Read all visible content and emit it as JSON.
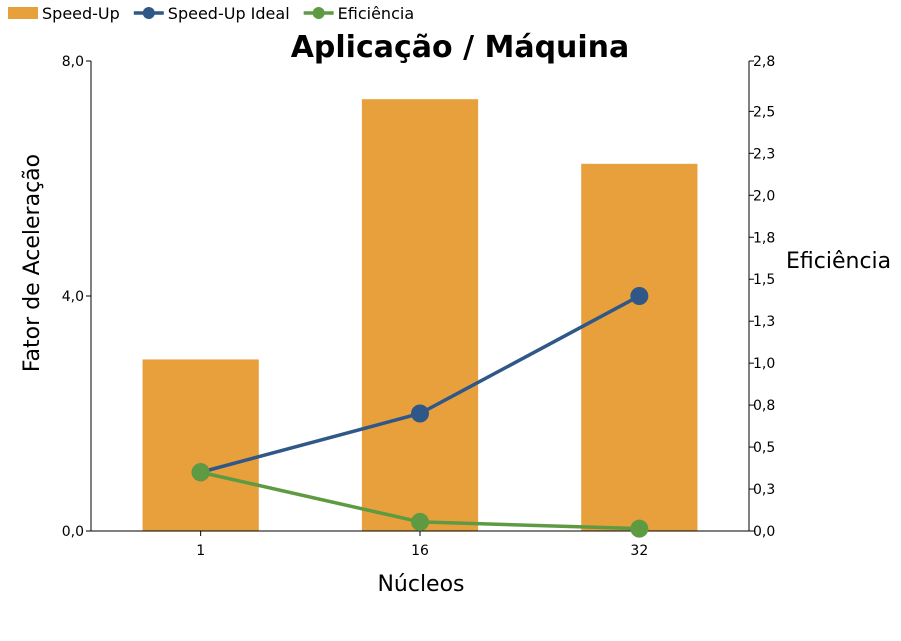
{
  "chart_data": {
    "type": "bar",
    "title": "Aplicação / Máquina",
    "xlabel": "Núcleos",
    "ylabel": "Fator de Aceleração",
    "y2label": "Eficiência",
    "categories": [
      "1",
      "16",
      "32"
    ],
    "ylim": [
      0,
      8
    ],
    "y2lim": [
      0,
      2.8
    ],
    "y_ticks": [
      "0,0",
      "4,0",
      "8,0"
    ],
    "y_tick_values": [
      0,
      4,
      8
    ],
    "y2_ticks": [
      "0,0",
      "0,3",
      "0,5",
      "0,8",
      "1,0",
      "1,3",
      "1,5",
      "1,8",
      "2,0",
      "2,3",
      "2,5",
      "2,8"
    ],
    "y2_tick_values": [
      0,
      0.25,
      0.5,
      0.75,
      1.0,
      1.25,
      1.5,
      1.75,
      2.0,
      2.25,
      2.5,
      2.8
    ],
    "legend_position": "top-left",
    "grid": false,
    "series": [
      {
        "name": "Speed-Up",
        "type": "bar",
        "axis": "left",
        "color": "#e8a03c",
        "values": [
          2.92,
          7.35,
          6.25
        ]
      },
      {
        "name": "Speed-Up Ideal",
        "type": "line",
        "axis": "left",
        "color": "#2f5788",
        "values": [
          1,
          2,
          4
        ]
      },
      {
        "name": "Eficiência",
        "type": "line",
        "axis": "right",
        "color": "#5e9a42",
        "values": [
          0.35,
          0.054,
          0.014
        ]
      }
    ]
  }
}
